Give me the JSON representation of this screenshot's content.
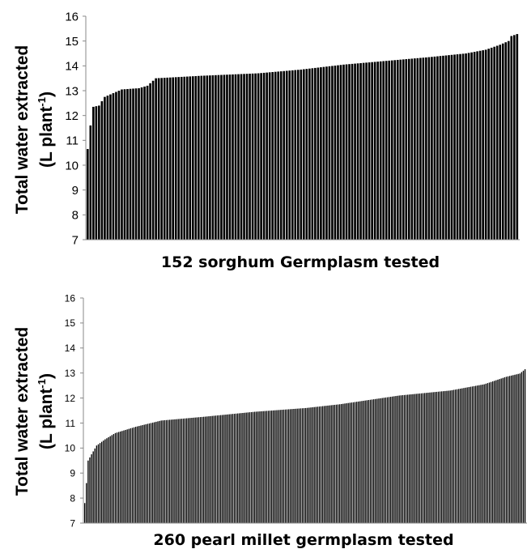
{
  "chart_data": [
    {
      "type": "bar",
      "ylabel_main": "Total water extracted",
      "ylabel_unit": "(L plant",
      "ylabel_sup": "-1",
      "ylabel_close": ")",
      "xlabel": "152 sorghum Germplasm tested",
      "ylim": [
        7,
        16
      ],
      "yticks": [
        "7",
        "8",
        "9",
        "10",
        "11",
        "12",
        "13",
        "14",
        "15",
        "16"
      ],
      "grid": false,
      "bar_color": "#000000",
      "n_bars": 152,
      "sorted_profile": [
        [
          0,
          10.65
        ],
        [
          1,
          11.6
        ],
        [
          2,
          12.35
        ],
        [
          4,
          12.4
        ],
        [
          6,
          12.75
        ],
        [
          9,
          12.9
        ],
        [
          12,
          13.05
        ],
        [
          18,
          13.1
        ],
        [
          21,
          13.2
        ],
        [
          24,
          13.5
        ],
        [
          40,
          13.6
        ],
        [
          60,
          13.7
        ],
        [
          75,
          13.85
        ],
        [
          90,
          14.05
        ],
        [
          105,
          14.2
        ],
        [
          120,
          14.35
        ],
        [
          133,
          14.5
        ],
        [
          140,
          14.65
        ],
        [
          145,
          14.85
        ],
        [
          148,
          15.0
        ],
        [
          149,
          15.2
        ],
        [
          151,
          15.28
        ]
      ]
    },
    {
      "type": "bar",
      "ylabel_main": "Total water extracted",
      "ylabel_unit": "(L plant",
      "ylabel_sup": "-1",
      "ylabel_close": ")",
      "xlabel": "260 pearl millet germplasm tested",
      "ylim": [
        7,
        16
      ],
      "yticks": [
        "7",
        "8",
        "9",
        "10",
        "11",
        "12",
        "13",
        "14",
        "15",
        "16"
      ],
      "grid": false,
      "bar_color": "#000000",
      "n_bars": 260,
      "sorted_profile": [
        [
          0,
          7.8
        ],
        [
          1,
          8.6
        ],
        [
          2,
          9.5
        ],
        [
          4,
          9.75
        ],
        [
          7,
          10.1
        ],
        [
          12,
          10.35
        ],
        [
          18,
          10.6
        ],
        [
          30,
          10.85
        ],
        [
          45,
          11.1
        ],
        [
          70,
          11.25
        ],
        [
          100,
          11.45
        ],
        [
          130,
          11.6
        ],
        [
          150,
          11.75
        ],
        [
          165,
          11.9
        ],
        [
          185,
          12.1
        ],
        [
          215,
          12.3
        ],
        [
          235,
          12.55
        ],
        [
          248,
          12.85
        ],
        [
          256,
          12.98
        ],
        [
          259,
          13.15
        ]
      ]
    }
  ]
}
